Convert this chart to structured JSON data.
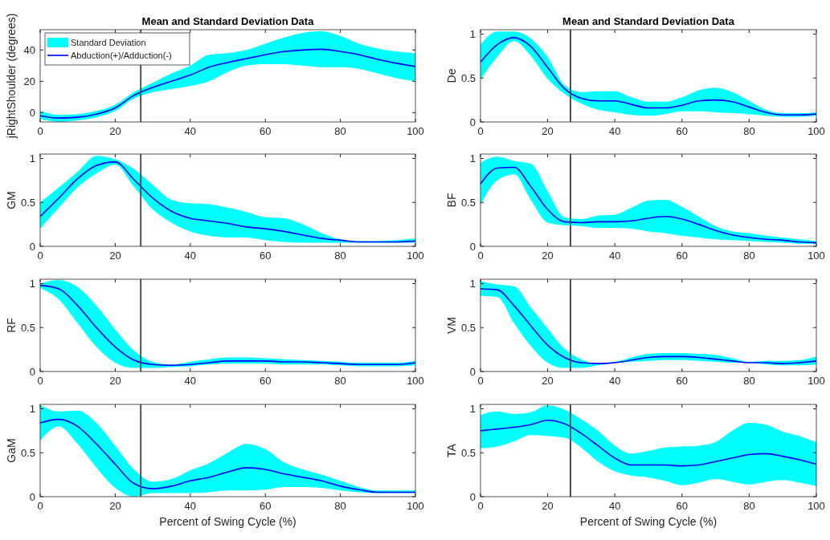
{
  "chart_data": [
    {
      "type": "line",
      "title": "Mean and Standard Deviation Data",
      "ylabel": "jRightShoulder (degrees)",
      "x": [
        0,
        5,
        10,
        15,
        20,
        25,
        30,
        35,
        40,
        45,
        50,
        55,
        60,
        65,
        70,
        75,
        80,
        85,
        90,
        95,
        100
      ],
      "xlim": [
        0,
        100
      ],
      "xticks": [
        0,
        20,
        40,
        60,
        80,
        100
      ],
      "ylim": [
        -6,
        53
      ],
      "yticks": [
        0,
        20,
        40
      ],
      "legend": "top left",
      "annotations": [
        "Standard Deviation"
      ],
      "ref_lines": [
        {
          "axis": "x",
          "value": 26.8,
          "color": "#505050"
        }
      ],
      "series": [
        {
          "name": "Abduction(+)/Adduction(-)",
          "color": "#0000ff",
          "values": [
            -2,
            -3.5,
            -3,
            -1,
            3,
            11,
            16,
            20,
            24,
            29,
            32,
            34.5,
            37,
            39,
            40,
            40.5,
            39,
            37,
            34,
            31.5,
            29.5
          ],
          "upper": [
            1,
            -1.5,
            -1,
            1,
            5,
            13,
            19,
            25,
            30,
            37,
            38,
            40,
            44,
            48,
            51,
            52,
            49,
            44,
            41,
            39,
            38
          ],
          "lower": [
            -4,
            -6,
            -5,
            -3,
            1,
            9,
            13,
            15,
            17,
            20,
            26,
            30,
            31,
            31,
            30,
            29,
            29,
            28,
            25,
            22,
            20
          ]
        }
      ]
    },
    {
      "type": "line",
      "title": "Mean and Standard Deviation Data",
      "ylabel": "De",
      "x": [
        0,
        5,
        10,
        15,
        20,
        25,
        30,
        35,
        40,
        45,
        50,
        55,
        60,
        65,
        70,
        75,
        80,
        85,
        90,
        95,
        100
      ],
      "xlim": [
        0,
        100
      ],
      "xticks": [
        0,
        20,
        40,
        60,
        80,
        100
      ],
      "ylim": [
        0,
        1.05
      ],
      "yticks": [
        0,
        0.5,
        1
      ],
      "ref_lines": [
        {
          "axis": "x",
          "value": 26.8,
          "color": "#505050"
        }
      ],
      "series": [
        {
          "color": "#0000ff",
          "values": [
            0.68,
            0.88,
            0.96,
            0.86,
            0.62,
            0.38,
            0.27,
            0.24,
            0.24,
            0.2,
            0.16,
            0.16,
            0.19,
            0.24,
            0.25,
            0.23,
            0.17,
            0.11,
            0.08,
            0.08,
            0.09
          ],
          "upper": [
            0.88,
            1.03,
            1.03,
            0.95,
            0.74,
            0.42,
            0.34,
            0.35,
            0.35,
            0.28,
            0.23,
            0.23,
            0.28,
            0.36,
            0.39,
            0.34,
            0.24,
            0.14,
            0.1,
            0.1,
            0.11
          ],
          "lower": [
            0.48,
            0.74,
            0.92,
            0.75,
            0.49,
            0.32,
            0.21,
            0.14,
            0.11,
            0.08,
            0.07,
            0.09,
            0.12,
            0.12,
            0.11,
            0.1,
            0.09,
            0.07,
            0.06,
            0.06,
            0.07
          ]
        }
      ]
    },
    {
      "type": "line",
      "ylabel": "GM",
      "x": [
        0,
        5,
        10,
        15,
        20,
        25,
        30,
        35,
        40,
        45,
        50,
        55,
        60,
        65,
        70,
        75,
        80,
        85,
        90,
        95,
        100
      ],
      "xlim": [
        0,
        100
      ],
      "xticks": [
        0,
        20,
        40,
        60,
        80,
        100
      ],
      "ylim": [
        0,
        1.05
      ],
      "yticks": [
        0,
        0.5,
        1
      ],
      "ref_lines": [
        {
          "axis": "x",
          "value": 26.8,
          "color": "#505050"
        }
      ],
      "series": [
        {
          "color": "#0000ff",
          "values": [
            0.34,
            0.55,
            0.77,
            0.92,
            0.96,
            0.76,
            0.55,
            0.4,
            0.32,
            0.29,
            0.26,
            0.22,
            0.2,
            0.17,
            0.13,
            0.09,
            0.07,
            0.05,
            0.05,
            0.05,
            0.06
          ],
          "upper": [
            0.5,
            0.67,
            0.85,
            1.03,
            0.99,
            0.88,
            0.7,
            0.53,
            0.49,
            0.48,
            0.44,
            0.39,
            0.33,
            0.32,
            0.25,
            0.15,
            0.08,
            0.06,
            0.06,
            0.07,
            0.09
          ],
          "lower": [
            0.2,
            0.44,
            0.67,
            0.83,
            0.93,
            0.68,
            0.42,
            0.27,
            0.17,
            0.12,
            0.1,
            0.1,
            0.07,
            0.05,
            0.04,
            0.04,
            0.04,
            0.04,
            0.04,
            0.04,
            0.04
          ]
        }
      ]
    },
    {
      "type": "line",
      "ylabel": "BF",
      "x": [
        0,
        5,
        10,
        15,
        20,
        25,
        30,
        35,
        40,
        45,
        50,
        55,
        60,
        65,
        70,
        75,
        80,
        85,
        90,
        95,
        100
      ],
      "xlim": [
        0,
        100
      ],
      "xticks": [
        0,
        20,
        40,
        60,
        80,
        100
      ],
      "ylim": [
        0,
        1.05
      ],
      "yticks": [
        0,
        0.5,
        1
      ],
      "ref_lines": [
        {
          "axis": "x",
          "value": 26.8,
          "color": "#505050"
        }
      ],
      "series": [
        {
          "color": "#0000ff",
          "values": [
            0.71,
            0.89,
            0.9,
            0.68,
            0.42,
            0.28,
            0.27,
            0.28,
            0.28,
            0.29,
            0.32,
            0.34,
            0.31,
            0.25,
            0.18,
            0.13,
            0.1,
            0.08,
            0.07,
            0.05,
            0.04
          ],
          "upper": [
            0.95,
            1.02,
            0.97,
            0.94,
            0.63,
            0.33,
            0.31,
            0.35,
            0.36,
            0.44,
            0.52,
            0.53,
            0.45,
            0.34,
            0.23,
            0.17,
            0.15,
            0.12,
            0.1,
            0.08,
            0.06
          ],
          "lower": [
            0.47,
            0.75,
            0.82,
            0.53,
            0.27,
            0.24,
            0.23,
            0.21,
            0.21,
            0.2,
            0.17,
            0.15,
            0.12,
            0.1,
            0.08,
            0.07,
            0.06,
            0.05,
            0.04,
            0.03,
            0.03
          ]
        }
      ]
    },
    {
      "type": "line",
      "ylabel": "RF",
      "x": [
        0,
        5,
        10,
        15,
        20,
        25,
        30,
        35,
        40,
        45,
        50,
        55,
        60,
        65,
        70,
        75,
        80,
        85,
        90,
        95,
        100
      ],
      "xlim": [
        0,
        100
      ],
      "xticks": [
        0,
        20,
        40,
        60,
        80,
        100
      ],
      "ylim": [
        0,
        1.05
      ],
      "yticks": [
        0,
        0.5,
        1
      ],
      "ref_lines": [
        {
          "axis": "x",
          "value": 26.8,
          "color": "#505050"
        }
      ],
      "series": [
        {
          "color": "#0000ff",
          "values": [
            0.98,
            0.94,
            0.75,
            0.5,
            0.28,
            0.13,
            0.08,
            0.07,
            0.08,
            0.1,
            0.12,
            0.12,
            0.12,
            0.11,
            0.11,
            0.1,
            0.09,
            0.08,
            0.08,
            0.08,
            0.1
          ],
          "upper": [
            1,
            1.04,
            0.96,
            0.75,
            0.48,
            0.24,
            0.11,
            0.08,
            0.11,
            0.14,
            0.16,
            0.16,
            0.15,
            0.14,
            0.13,
            0.12,
            0.11,
            0.1,
            0.1,
            0.1,
            0.12
          ],
          "lower": [
            0.95,
            0.82,
            0.55,
            0.28,
            0.1,
            0.04,
            0.04,
            0.05,
            0.06,
            0.08,
            0.09,
            0.09,
            0.09,
            0.08,
            0.08,
            0.08,
            0.07,
            0.06,
            0.06,
            0.06,
            0.07
          ]
        }
      ]
    },
    {
      "type": "line",
      "ylabel": "VM",
      "x": [
        0,
        5,
        10,
        15,
        20,
        25,
        30,
        35,
        40,
        45,
        50,
        55,
        60,
        65,
        70,
        75,
        80,
        85,
        90,
        95,
        100
      ],
      "xlim": [
        0,
        100
      ],
      "xticks": [
        0,
        20,
        40,
        60,
        80,
        100
      ],
      "ylim": [
        0,
        1.05
      ],
      "yticks": [
        0,
        0.5,
        1
      ],
      "ref_lines": [
        {
          "axis": "x",
          "value": 26.8,
          "color": "#505050"
        }
      ],
      "series": [
        {
          "color": "#0000ff",
          "values": [
            0.94,
            0.93,
            0.75,
            0.52,
            0.3,
            0.16,
            0.1,
            0.09,
            0.1,
            0.13,
            0.16,
            0.17,
            0.17,
            0.16,
            0.14,
            0.12,
            0.1,
            0.1,
            0.09,
            0.1,
            0.12
          ],
          "upper": [
            1.03,
            0.99,
            0.97,
            0.73,
            0.49,
            0.26,
            0.14,
            0.09,
            0.11,
            0.16,
            0.2,
            0.21,
            0.21,
            0.2,
            0.19,
            0.15,
            0.11,
            0.12,
            0.12,
            0.13,
            0.17
          ],
          "lower": [
            0.86,
            0.85,
            0.55,
            0.29,
            0.1,
            0.04,
            0.04,
            0.07,
            0.1,
            0.11,
            0.12,
            0.13,
            0.13,
            0.12,
            0.11,
            0.1,
            0.1,
            0.08,
            0.07,
            0.07,
            0.08
          ]
        }
      ]
    },
    {
      "type": "line",
      "ylabel": "GaM",
      "xlabel": "Percent of Swing Cycle (%)",
      "x": [
        0,
        5,
        10,
        15,
        20,
        25,
        30,
        35,
        40,
        45,
        50,
        55,
        60,
        65,
        70,
        75,
        80,
        85,
        90,
        95,
        100
      ],
      "xlim": [
        0,
        100
      ],
      "xticks": [
        0,
        20,
        40,
        60,
        80,
        100
      ],
      "ylim": [
        0,
        1.05
      ],
      "yticks": [
        0,
        0.5,
        1
      ],
      "ref_lines": [
        {
          "axis": "x",
          "value": 26.8,
          "color": "#505050"
        }
      ],
      "series": [
        {
          "color": "#0000ff",
          "values": [
            0.84,
            0.88,
            0.8,
            0.6,
            0.37,
            0.15,
            0.09,
            0.12,
            0.18,
            0.22,
            0.28,
            0.33,
            0.31,
            0.26,
            0.22,
            0.18,
            0.12,
            0.08,
            0.05,
            0.05,
            0.05
          ],
          "upper": [
            1.04,
            0.97,
            0.98,
            0.84,
            0.58,
            0.31,
            0.17,
            0.2,
            0.3,
            0.38,
            0.5,
            0.6,
            0.54,
            0.39,
            0.31,
            0.25,
            0.18,
            0.11,
            0.07,
            0.07,
            0.07
          ],
          "lower": [
            0.64,
            0.8,
            0.6,
            0.33,
            0.1,
            0,
            0.04,
            0.04,
            0.04,
            0.05,
            0.07,
            0.07,
            0.08,
            0.11,
            0.11,
            0.1,
            0.07,
            0.05,
            0.04,
            0.04,
            0.04
          ]
        }
      ]
    },
    {
      "type": "line",
      "ylabel": "TA",
      "xlabel": "Percent of Swing Cycle (%)",
      "x": [
        0,
        5,
        10,
        15,
        20,
        25,
        30,
        35,
        40,
        45,
        50,
        55,
        60,
        65,
        70,
        75,
        80,
        85,
        90,
        95,
        100
      ],
      "xlim": [
        0,
        100
      ],
      "xticks": [
        0,
        20,
        40,
        60,
        80,
        100
      ],
      "ylim": [
        0,
        1.05
      ],
      "yticks": [
        0,
        0.5,
        1
      ],
      "ref_lines": [
        {
          "axis": "x",
          "value": 26.8,
          "color": "#505050"
        }
      ],
      "series": [
        {
          "color": "#0000ff",
          "values": [
            0.75,
            0.77,
            0.79,
            0.82,
            0.87,
            0.83,
            0.72,
            0.58,
            0.44,
            0.36,
            0.36,
            0.36,
            0.35,
            0.36,
            0.4,
            0.44,
            0.48,
            0.49,
            0.46,
            0.42,
            0.37
          ],
          "upper": [
            0.93,
            0.97,
            0.94,
            0.96,
            1.04,
            0.99,
            0.88,
            0.75,
            0.58,
            0.49,
            0.52,
            0.56,
            0.57,
            0.58,
            0.62,
            0.75,
            0.84,
            0.82,
            0.74,
            0.69,
            0.62
          ],
          "lower": [
            0.55,
            0.57,
            0.63,
            0.7,
            0.69,
            0.67,
            0.56,
            0.4,
            0.29,
            0.24,
            0.22,
            0.18,
            0.13,
            0.16,
            0.2,
            0.17,
            0.14,
            0.17,
            0.19,
            0.16,
            0.12
          ]
        }
      ]
    }
  ]
}
